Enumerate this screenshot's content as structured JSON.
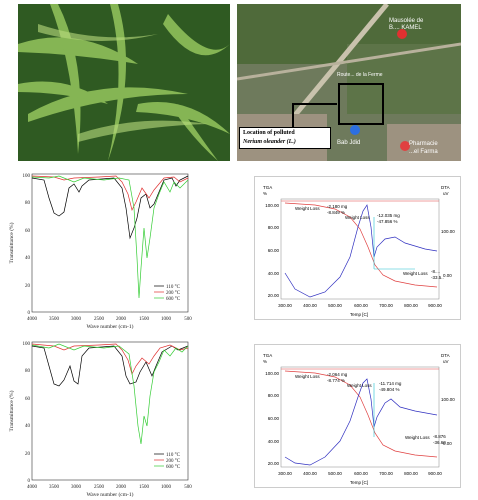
{
  "map": {
    "label_mausolee": "Mausolée de",
    "label_kamel": "B.... KAMEL",
    "label_street": "Route... de la Ferme",
    "label_bab": "Bab Jdid",
    "label_pharmacie": "Pharmacie",
    "label_pharmacie2": "...el Farma",
    "callout_line1": "Location of polluted",
    "callout_line2": "Nerium oleander (L.)"
  },
  "ftir_top": {
    "ylabel": "Transmittance (%)",
    "xlabel": "Wave number (cm-1)",
    "xticks": [
      "4000",
      "3500",
      "3000",
      "2500",
      "2000",
      "1500",
      "1000",
      "500"
    ],
    "yticks": [
      "100",
      "80",
      "60",
      "40",
      "20",
      "0"
    ],
    "legend": [
      "110 °C",
      "200 °C",
      "600 °C"
    ]
  },
  "ftir_bottom": {
    "ylabel": "Transmittance (%)",
    "xlabel": "Wave number (cm-1)",
    "xticks": [
      "4000",
      "3500",
      "3000",
      "2500",
      "2000",
      "1500",
      "1000",
      "500"
    ],
    "yticks": [
      "100",
      "80",
      "60",
      "40",
      "20",
      "0"
    ],
    "legend": [
      "110 °C",
      "200 °C",
      "600 °C"
    ]
  },
  "tga_top": {
    "tga_label": "TGA",
    "tga_unit": "%",
    "dta_label": "DTA",
    "dta_unit": "uV",
    "wl1": "Weight Loss",
    "wl1_vals": "-2.180 mg",
    "wl1_vals2": "-8.849 %",
    "wl2": "Weight Loss",
    "wl2_vals": "-12.035 mg",
    "wl2_vals2": "-47.856 %",
    "wl3": "Weight Loss",
    "wl3_vals": "-8.... ",
    "wl3_vals2": "-33.5..",
    "xlabel": "Temp [C]",
    "xticks": [
      "300.00",
      "400.00",
      "500.00",
      "600.00",
      "700.00",
      "800.00",
      "900.00"
    ],
    "yticks": [
      "100.00",
      "80.00",
      "60.00",
      "40.00",
      "20.00"
    ],
    "yticks_right": [
      "100.00",
      "0.00"
    ]
  },
  "tga_bottom": {
    "tga_label": "TGA",
    "tga_unit": "%",
    "dta_label": "DTA",
    "dta_unit": "uV",
    "wl1": "Weight Loss",
    "wl1_vals": "-2.064 mg",
    "wl1_vals2": "-8.774 %",
    "wl2": "Weight Loss",
    "wl2_vals": "-11.714 mg",
    "wl2_vals2": "-49.804 %",
    "wl3": "Weight Loss",
    "wl3_vals": "-8.876",
    "wl3_vals2": "-36.60",
    "xlabel": "Temp [C]",
    "xticks": [
      "300.00",
      "400.00",
      "500.00",
      "600.00",
      "700.00",
      "800.00",
      "900.00"
    ],
    "yticks": [
      "100.00",
      "80.00",
      "60.00",
      "40.00",
      "20.00"
    ],
    "yticks_right": [
      "100.00",
      "0.00"
    ]
  },
  "colors": {
    "c110": "#000000",
    "c200": "#e03030",
    "c600": "#33cc33",
    "tga": "#e04040",
    "dta": "#3030c0",
    "dta_step": "#20c0d0"
  }
}
